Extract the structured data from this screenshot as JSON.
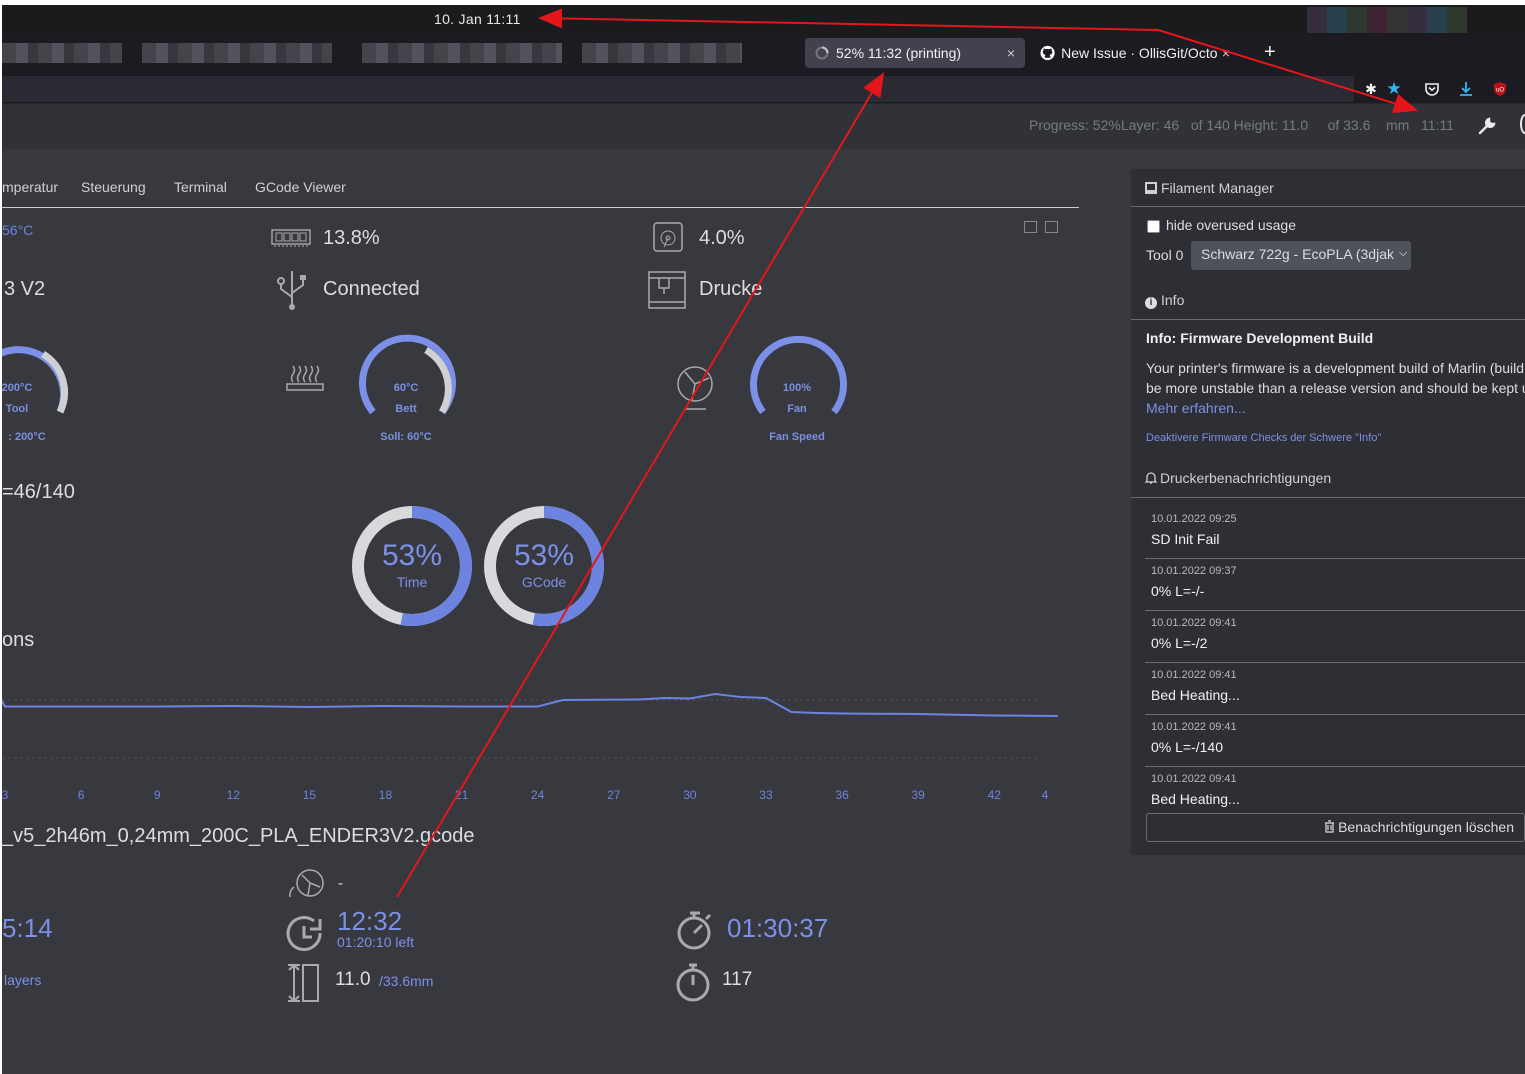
{
  "system": {
    "clock": "10. Jan  11:11"
  },
  "browser": {
    "tabs": [
      {
        "title": "52% 11:32 (printing)",
        "active": true
      },
      {
        "title": "New Issue · OllisGit/Octo",
        "active": false
      }
    ],
    "new_tab_label": "+",
    "close_glyph": "×"
  },
  "navbar": {
    "progress_text": "Progress: 52%Layer: 46   of 140 Height: 11.0     of 33.6    mm   11:11"
  },
  "tabs": [
    "mperatur",
    "Steuerung",
    "Terminal",
    "GCode Viewer"
  ],
  "state": {
    "temp_partial": "56°C",
    "printer_partial": "3 V2",
    "memory": "13.8%",
    "connection": "Connected",
    "disk": "4.0%",
    "status_partial": "Drucke"
  },
  "gauges": [
    {
      "value": "200°C",
      "label": "Tool",
      "target": ": 200°C",
      "fill": 1.0
    },
    {
      "value": "60°C",
      "label": "Bett",
      "target": "Soll: 60°C",
      "fill": 1.0
    },
    {
      "value": "100%",
      "label": "Fan",
      "target": "Fan Speed",
      "fill": 1.0
    }
  ],
  "layer_partial": "=46/140",
  "progress_rings": [
    {
      "value": "53%",
      "label": "Time",
      "fraction": 0.53
    },
    {
      "value": "53%",
      "label": "GCode",
      "fraction": 0.53
    }
  ],
  "section_partial": "ons",
  "chart_data": {
    "type": "line",
    "x_ticks": [
      "3",
      "6",
      "9",
      "12",
      "15",
      "18",
      "21",
      "24",
      "27",
      "30",
      "33",
      "36",
      "39",
      "42",
      "4"
    ],
    "x": [
      2,
      3,
      6,
      9,
      12,
      15,
      18,
      21,
      24,
      25,
      28,
      29,
      30,
      31,
      32,
      33,
      34,
      35,
      36,
      39,
      42,
      44.5
    ],
    "y": [
      29,
      20.5,
      20.5,
      20.5,
      20.6,
      20.4,
      20.6,
      20.5,
      20.5,
      21.8,
      21.9,
      22.2,
      22.1,
      23,
      22.4,
      22.2,
      19.4,
      19.2,
      19.1,
      19,
      18.7,
      18.6
    ]
  },
  "filename": "_v5_2h46m_0,24mm_200C_PLA_ENDER3V2.gcode",
  "info": {
    "fan_value": "-",
    "elapsed_partial": "5:14",
    "eta": "12:32",
    "time_left": "01:20:10 left",
    "total_time": "01:30:37",
    "layers_partial": "layers",
    "height": "11.0",
    "height_total": "/33.6mm",
    "count": "117"
  },
  "sidebar": {
    "title": "Filament Manager",
    "hide_overused": "hide overused usage",
    "tool_label": "Tool 0",
    "spool": "Schwarz 722g - EcoPLA (3djak",
    "info_head": "Info",
    "info_title": "Info: Firmware Development Build",
    "info_line1": "Your printer's firmware is a development build of Marlin (build",
    "info_line2": "be more unstable than a release version and should be kept u",
    "info_more": "Mehr erfahren...",
    "info_disable": "Deaktivere Firmware Checks der Schwere \"Info\"",
    "notif_head": "Druckerbenachrichtigungen",
    "notifications": [
      {
        "date": "10.01.2022 09:25",
        "text": "SD Init Fail"
      },
      {
        "date": "10.01.2022 09:37",
        "text": "0% L=-/-"
      },
      {
        "date": "10.01.2022 09:41",
        "text": "0% L=-/2"
      },
      {
        "date": "10.01.2022 09:41",
        "text": "Bed Heating..."
      },
      {
        "date": "10.01.2022 09:41",
        "text": "0% L=-/140"
      },
      {
        "date": "10.01.2022 09:41",
        "text": "Bed Heating..."
      }
    ],
    "clear_button": "Benachrichtigungen löschen"
  },
  "colors": {
    "accent": "#6c84e0",
    "annotation": "#e4161b",
    "background": "#38393f"
  }
}
